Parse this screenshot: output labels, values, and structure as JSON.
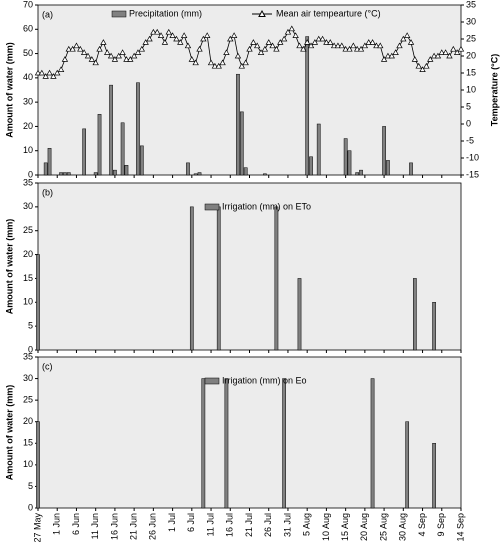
{
  "chart_data": [
    {
      "type": "combo",
      "title": "(a)",
      "ylabel": "Amount of water (mm)",
      "y2label": "Temperature (°C)",
      "xlim": [
        0,
        110
      ],
      "ylim": [
        0,
        70
      ],
      "yticks": [
        0,
        10,
        20,
        30,
        40,
        50,
        60,
        70
      ],
      "y2lim": [
        -15,
        35
      ],
      "y2ticks": [
        -15,
        -10,
        -5,
        0,
        5,
        10,
        15,
        20,
        25,
        30,
        35
      ],
      "series": [
        {
          "name": "Precipitation (mm)",
          "type": "bar",
          "color": "#808080",
          "x": [
            2,
            3,
            6,
            7,
            8,
            12,
            15,
            16,
            19,
            20,
            22,
            23,
            26,
            27,
            39,
            41,
            42,
            52,
            53,
            54,
            59,
            70,
            71,
            73,
            80,
            81,
            83,
            84,
            90,
            91,
            97
          ],
          "values": [
            5,
            11,
            1,
            1,
            1,
            19,
            1,
            25,
            37,
            2,
            21.5,
            4,
            38,
            12,
            5,
            0.5,
            1,
            41.5,
            26,
            3,
            0.5,
            57,
            7.5,
            21,
            15,
            10,
            1,
            2,
            20,
            6,
            5
          ]
        },
        {
          "name": "Mean air tempearture (°C)",
          "type": "line",
          "axis": "y2",
          "color": "#000000",
          "x": [
            0,
            1,
            2,
            3,
            4,
            5,
            6,
            7,
            8,
            9,
            10,
            11,
            12,
            13,
            14,
            15,
            16,
            17,
            18,
            19,
            20,
            21,
            22,
            23,
            24,
            25,
            26,
            27,
            28,
            29,
            30,
            31,
            32,
            33,
            34,
            35,
            36,
            37,
            38,
            39,
            40,
            41,
            42,
            43,
            44,
            45,
            46,
            47,
            48,
            49,
            50,
            51,
            52,
            53,
            54,
            55,
            56,
            57,
            58,
            59,
            60,
            61,
            62,
            63,
            64,
            65,
            66,
            67,
            68,
            69,
            70,
            71,
            72,
            73,
            74,
            75,
            76,
            77,
            78,
            79,
            80,
            81,
            82,
            83,
            84,
            85,
            86,
            87,
            88,
            89,
            90,
            91,
            92,
            93,
            94,
            95,
            96,
            97,
            98,
            99,
            100,
            101,
            102,
            103,
            104,
            105,
            106,
            107,
            108,
            109,
            110
          ],
          "values": [
            15,
            15,
            14,
            15,
            14,
            15,
            16,
            19,
            22,
            22,
            23,
            22,
            21,
            20,
            19,
            18,
            22,
            24,
            21,
            20,
            19,
            20,
            21,
            19,
            19,
            20,
            21,
            22,
            24,
            25,
            27,
            27,
            26,
            24,
            27,
            26,
            25,
            24,
            26,
            23,
            19,
            18,
            22,
            25,
            26,
            18,
            17,
            17,
            18,
            21,
            25,
            26,
            20,
            17,
            18,
            22,
            24,
            23,
            21,
            22,
            24,
            23,
            22,
            24,
            25,
            27,
            28,
            26,
            23,
            22,
            24,
            23,
            24,
            25,
            25,
            24,
            24,
            23,
            23,
            23,
            22,
            22,
            23,
            22,
            22,
            23,
            24,
            24,
            23,
            23,
            19,
            20,
            20,
            21,
            23,
            25,
            26,
            24,
            19,
            17,
            16,
            17,
            19,
            20,
            20,
            21,
            21,
            20,
            22,
            21,
            22
          ]
        }
      ]
    },
    {
      "type": "bar",
      "title": "(b)",
      "ylabel": "Amount of water (mm)",
      "xlim": [
        0,
        110
      ],
      "ylim": [
        0,
        35
      ],
      "yticks": [
        0,
        5,
        10,
        15,
        20,
        25,
        30,
        35
      ],
      "series": [
        {
          "name": "Irrigation (mm) on ETo",
          "color": "#808080",
          "x": [
            0,
            40,
            47,
            62,
            68,
            98,
            103
          ],
          "values": [
            20,
            30,
            30,
            30,
            15,
            15,
            10
          ]
        }
      ]
    },
    {
      "type": "bar",
      "title": "(c)",
      "ylabel": "Amount of water (mm)",
      "xlim": [
        0,
        110
      ],
      "ylim": [
        0,
        35
      ],
      "yticks": [
        0,
        5,
        10,
        15,
        20,
        25,
        30,
        35
      ],
      "xticks": [
        {
          "value": 0,
          "label": "27 May"
        },
        {
          "value": 5,
          "label": "1 Jun"
        },
        {
          "value": 10,
          "label": "6 Jun"
        },
        {
          "value": 15,
          "label": "11 Jun"
        },
        {
          "value": 20,
          "label": "16 Jun"
        },
        {
          "value": 25,
          "label": "21 Jun"
        },
        {
          "value": 30,
          "label": "26 Jun"
        },
        {
          "value": 35,
          "label": "1 Jul"
        },
        {
          "value": 40,
          "label": "6 Jul"
        },
        {
          "value": 45,
          "label": "11 Jul"
        },
        {
          "value": 50,
          "label": "16 Jul"
        },
        {
          "value": 55,
          "label": "21 Jul"
        },
        {
          "value": 60,
          "label": "26 Jul"
        },
        {
          "value": 65,
          "label": "31 Jul"
        },
        {
          "value": 70,
          "label": "5 Aug"
        },
        {
          "value": 75,
          "label": "10 Aug"
        },
        {
          "value": 80,
          "label": "15 Aug"
        },
        {
          "value": 85,
          "label": "20 Aug"
        },
        {
          "value": 90,
          "label": "25 Aug"
        },
        {
          "value": 95,
          "label": "30 Aug"
        },
        {
          "value": 100,
          "label": "4 Sep"
        },
        {
          "value": 105,
          "label": "9 Sep"
        },
        {
          "value": 110,
          "label": "14 Sep"
        }
      ],
      "series": [
        {
          "name": "Irrigation (mm) on Eo",
          "color": "#808080",
          "x": [
            0,
            43,
            49,
            64,
            87,
            96,
            103
          ],
          "values": [
            20,
            30,
            30,
            30,
            30,
            20,
            15
          ]
        }
      ]
    }
  ]
}
